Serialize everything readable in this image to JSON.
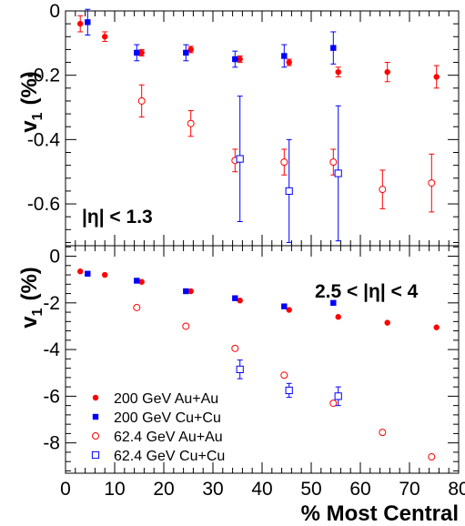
{
  "chart_data": [
    {
      "type": "scatter",
      "panel": "top",
      "ylabel": "v",
      "ylabel_sub": "1",
      "ylabel_unit": "(%)",
      "annotation": "|η| < 1.3",
      "ylim": [
        -0.73,
        0.0
      ],
      "yticks": [
        0,
        -0.2,
        -0.4,
        -0.6
      ],
      "ytick_labels": [
        "0",
        "-0.2",
        "-0.4",
        "-0.6"
      ],
      "xlim": [
        0,
        80
      ],
      "series": [
        {
          "name": "200 GeV Au+Au",
          "color": "#ff0000",
          "marker": "filled-circle",
          "x": [
            3,
            8,
            15.5,
            25.5,
            35.5,
            45.5,
            55.5,
            65.5,
            75.5
          ],
          "y": [
            -0.04,
            -0.08,
            -0.13,
            -0.12,
            -0.15,
            -0.16,
            -0.19,
            -0.19,
            -0.205
          ],
          "err": [
            0.025,
            0.015,
            0.01,
            0.01,
            0.01,
            0.01,
            0.015,
            0.03,
            0.035
          ]
        },
        {
          "name": "200 GeV Cu+Cu",
          "color": "#0000ff",
          "marker": "filled-square",
          "x": [
            4.5,
            14.5,
            24.5,
            34.5,
            44.5,
            54.5
          ],
          "y": [
            -0.035,
            -0.13,
            -0.13,
            -0.15,
            -0.14,
            -0.115
          ],
          "err": [
            0.04,
            0.025,
            0.025,
            0.025,
            0.035,
            0.05
          ]
        },
        {
          "name": "62.4 GeV Au+Au",
          "color": "#ff0000",
          "marker": "open-circle",
          "x": [
            15.5,
            25.5,
            34.5,
            44.5,
            54.5,
            64.5,
            74.5
          ],
          "y": [
            -0.28,
            -0.35,
            -0.465,
            -0.47,
            -0.47,
            -0.555,
            -0.535
          ],
          "err": [
            0.05,
            0.04,
            0.035,
            0.04,
            0.04,
            0.06,
            0.09
          ]
        },
        {
          "name": "62.4 GeV Cu+Cu",
          "color": "#0000ff",
          "marker": "open-square",
          "x": [
            35.5,
            45.5,
            55.5
          ],
          "y": [
            -0.46,
            -0.56,
            -0.505
          ],
          "err": [
            0.195,
            0.16,
            0.21
          ]
        }
      ]
    },
    {
      "type": "scatter",
      "panel": "bottom",
      "ylabel": "v",
      "ylabel_sub": "1",
      "ylabel_unit": "(%)",
      "annotation": "2.5 < |η| < 4",
      "xlabel": "% Most Central",
      "ylim": [
        -9.3,
        0.45
      ],
      "yticks": [
        0,
        -2,
        -4,
        -6,
        -8
      ],
      "ytick_labels": [
        "0",
        "-2",
        "-4",
        "-6",
        "-8"
      ],
      "xlim": [
        0,
        80
      ],
      "xticks": [
        0,
        10,
        20,
        30,
        40,
        50,
        60,
        70,
        80
      ],
      "xtick_labels": [
        "0",
        "10",
        "20",
        "30",
        "40",
        "50",
        "60",
        "70",
        "80"
      ],
      "series": [
        {
          "name": "200 GeV Au+Au",
          "color": "#ff0000",
          "marker": "filled-circle",
          "x": [
            3,
            8,
            15.5,
            25.5,
            35.5,
            45.5,
            55.5,
            65.5,
            75.5
          ],
          "y": [
            -0.65,
            -0.8,
            -1.1,
            -1.5,
            -1.9,
            -2.3,
            -2.6,
            -2.85,
            -3.05
          ],
          "err": [
            0,
            0,
            0,
            0,
            0,
            0,
            0,
            0,
            0
          ]
        },
        {
          "name": "200 GeV Cu+Cu",
          "color": "#0000ff",
          "marker": "filled-square",
          "x": [
            4.5,
            14.5,
            24.5,
            34.5,
            44.5,
            54.5
          ],
          "y": [
            -0.75,
            -1.05,
            -1.5,
            -1.8,
            -2.15,
            -2.0
          ],
          "err": [
            0,
            0,
            0,
            0,
            0,
            0
          ]
        },
        {
          "name": "62.4 GeV Au+Au",
          "color": "#ff0000",
          "marker": "open-circle",
          "x": [
            14.5,
            24.5,
            34.5,
            44.5,
            54.5,
            64.5,
            74.5
          ],
          "y": [
            -2.2,
            -3.0,
            -3.95,
            -5.1,
            -6.3,
            -7.55,
            -8.6
          ],
          "err": [
            0,
            0,
            0,
            0,
            0,
            0,
            0
          ]
        },
        {
          "name": "62.4 GeV Cu+Cu",
          "color": "#0000ff",
          "marker": "open-square",
          "x": [
            35.5,
            45.5,
            55.5
          ],
          "y": [
            -4.85,
            -5.75,
            -6.0
          ],
          "err": [
            0.4,
            0.3,
            0.4
          ]
        }
      ]
    }
  ],
  "legend": {
    "placement": "bottom-left",
    "entries": [
      {
        "label": "200 GeV Au+Au",
        "color": "#ff0000",
        "marker": "filled-circle"
      },
      {
        "label": "200 GeV Cu+Cu",
        "color": "#0000ff",
        "marker": "filled-square"
      },
      {
        "label": "62.4 GeV Au+Au",
        "color": "#ff0000",
        "marker": "open-circle"
      },
      {
        "label": "62.4 GeV Cu+Cu",
        "color": "#0000ff",
        "marker": "open-square"
      }
    ]
  }
}
